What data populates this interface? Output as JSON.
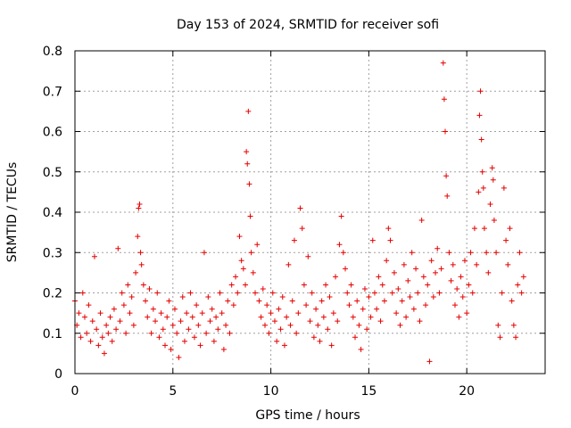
{
  "chart_data": {
    "type": "scatter",
    "title": "Day 153 of 2024, SRMTID for receiver sofi",
    "xlabel": "GPS time / hours",
    "ylabel": "SRMTID / TECUs",
    "xlim": [
      0,
      24
    ],
    "ylim": [
      0,
      0.8
    ],
    "xticks": [
      0,
      5,
      10,
      15,
      20
    ],
    "xtick_labels": [
      "0",
      "5",
      "10",
      "15",
      "20"
    ],
    "yticks": [
      0,
      0.1,
      0.2,
      0.3,
      0.4,
      0.5,
      0.6,
      0.7,
      0.8
    ],
    "ytick_labels": [
      "0",
      "0.1",
      "0.2",
      "0.3",
      "0.4",
      "0.5",
      "0.6",
      "0.7",
      "0.8"
    ],
    "grid": true,
    "marker": "plus",
    "color": "#e60000",
    "series": [
      {
        "name": "SRMTID",
        "points": [
          [
            0.0,
            0.18
          ],
          [
            0.1,
            0.12
          ],
          [
            0.2,
            0.15
          ],
          [
            0.3,
            0.09
          ],
          [
            0.4,
            0.2
          ],
          [
            0.5,
            0.14
          ],
          [
            0.6,
            0.1
          ],
          [
            0.7,
            0.17
          ],
          [
            0.8,
            0.08
          ],
          [
            0.9,
            0.13
          ],
          [
            1.0,
            0.29
          ],
          [
            1.1,
            0.11
          ],
          [
            1.2,
            0.07
          ],
          [
            1.3,
            0.15
          ],
          [
            1.4,
            0.09
          ],
          [
            1.5,
            0.05
          ],
          [
            1.6,
            0.12
          ],
          [
            1.7,
            0.1
          ],
          [
            1.8,
            0.14
          ],
          [
            1.9,
            0.08
          ],
          [
            2.0,
            0.16
          ],
          [
            2.1,
            0.11
          ],
          [
            2.2,
            0.31
          ],
          [
            2.3,
            0.13
          ],
          [
            2.4,
            0.2
          ],
          [
            2.5,
            0.17
          ],
          [
            2.6,
            0.1
          ],
          [
            2.7,
            0.22
          ],
          [
            2.8,
            0.15
          ],
          [
            2.9,
            0.19
          ],
          [
            3.0,
            0.12
          ],
          [
            3.1,
            0.25
          ],
          [
            3.2,
            0.34
          ],
          [
            3.25,
            0.41
          ],
          [
            3.3,
            0.42
          ],
          [
            3.35,
            0.3
          ],
          [
            3.4,
            0.27
          ],
          [
            3.5,
            0.22
          ],
          [
            3.6,
            0.18
          ],
          [
            3.7,
            0.14
          ],
          [
            3.8,
            0.21
          ],
          [
            3.9,
            0.1
          ],
          [
            4.0,
            0.16
          ],
          [
            4.1,
            0.13
          ],
          [
            4.2,
            0.2
          ],
          [
            4.3,
            0.09
          ],
          [
            4.4,
            0.15
          ],
          [
            4.5,
            0.11
          ],
          [
            4.6,
            0.07
          ],
          [
            4.7,
            0.14
          ],
          [
            4.8,
            0.18
          ],
          [
            4.9,
            0.06
          ],
          [
            5.0,
            0.12
          ],
          [
            5.1,
            0.16
          ],
          [
            5.2,
            0.1
          ],
          [
            5.3,
            0.04
          ],
          [
            5.4,
            0.13
          ],
          [
            5.5,
            0.19
          ],
          [
            5.6,
            0.08
          ],
          [
            5.7,
            0.15
          ],
          [
            5.8,
            0.11
          ],
          [
            5.9,
            0.2
          ],
          [
            6.0,
            0.14
          ],
          [
            6.1,
            0.09
          ],
          [
            6.2,
            0.17
          ],
          [
            6.3,
            0.12
          ],
          [
            6.4,
            0.07
          ],
          [
            6.5,
            0.15
          ],
          [
            6.6,
            0.3
          ],
          [
            6.7,
            0.1
          ],
          [
            6.8,
            0.19
          ],
          [
            6.9,
            0.13
          ],
          [
            7.0,
            0.16
          ],
          [
            7.1,
            0.08
          ],
          [
            7.2,
            0.14
          ],
          [
            7.3,
            0.11
          ],
          [
            7.4,
            0.2
          ],
          [
            7.5,
            0.15
          ],
          [
            7.6,
            0.06
          ],
          [
            7.7,
            0.12
          ],
          [
            7.8,
            0.18
          ],
          [
            7.9,
            0.1
          ],
          [
            8.0,
            0.22
          ],
          [
            8.1,
            0.17
          ],
          [
            8.2,
            0.24
          ],
          [
            8.3,
            0.2
          ],
          [
            8.4,
            0.34
          ],
          [
            8.5,
            0.28
          ],
          [
            8.6,
            0.26
          ],
          [
            8.7,
            0.22
          ],
          [
            8.75,
            0.55
          ],
          [
            8.8,
            0.52
          ],
          [
            8.85,
            0.65
          ],
          [
            8.9,
            0.47
          ],
          [
            8.95,
            0.39
          ],
          [
            9.0,
            0.3
          ],
          [
            9.1,
            0.25
          ],
          [
            9.2,
            0.2
          ],
          [
            9.3,
            0.32
          ],
          [
            9.4,
            0.18
          ],
          [
            9.5,
            0.14
          ],
          [
            9.6,
            0.21
          ],
          [
            9.7,
            0.12
          ],
          [
            9.8,
            0.17
          ],
          [
            9.9,
            0.1
          ],
          [
            10.0,
            0.15
          ],
          [
            10.1,
            0.2
          ],
          [
            10.2,
            0.13
          ],
          [
            10.3,
            0.08
          ],
          [
            10.4,
            0.16
          ],
          [
            10.5,
            0.11
          ],
          [
            10.6,
            0.19
          ],
          [
            10.7,
            0.07
          ],
          [
            10.8,
            0.14
          ],
          [
            10.9,
            0.27
          ],
          [
            11.0,
            0.12
          ],
          [
            11.1,
            0.18
          ],
          [
            11.2,
            0.33
          ],
          [
            11.3,
            0.1
          ],
          [
            11.4,
            0.15
          ],
          [
            11.5,
            0.41
          ],
          [
            11.6,
            0.36
          ],
          [
            11.7,
            0.22
          ],
          [
            11.8,
            0.17
          ],
          [
            11.9,
            0.29
          ],
          [
            12.0,
            0.13
          ],
          [
            12.1,
            0.2
          ],
          [
            12.2,
            0.09
          ],
          [
            12.3,
            0.16
          ],
          [
            12.4,
            0.12
          ],
          [
            12.5,
            0.08
          ],
          [
            12.6,
            0.18
          ],
          [
            12.7,
            0.14
          ],
          [
            12.8,
            0.22
          ],
          [
            12.9,
            0.11
          ],
          [
            13.0,
            0.19
          ],
          [
            13.1,
            0.07
          ],
          [
            13.2,
            0.15
          ],
          [
            13.3,
            0.24
          ],
          [
            13.4,
            0.13
          ],
          [
            13.5,
            0.32
          ],
          [
            13.6,
            0.39
          ],
          [
            13.7,
            0.3
          ],
          [
            13.8,
            0.26
          ],
          [
            13.9,
            0.2
          ],
          [
            14.0,
            0.17
          ],
          [
            14.1,
            0.22
          ],
          [
            14.2,
            0.14
          ],
          [
            14.3,
            0.09
          ],
          [
            14.4,
            0.18
          ],
          [
            14.5,
            0.12
          ],
          [
            14.6,
            0.06
          ],
          [
            14.7,
            0.16
          ],
          [
            14.8,
            0.21
          ],
          [
            14.9,
            0.11
          ],
          [
            15.0,
            0.19
          ],
          [
            15.1,
            0.14
          ],
          [
            15.2,
            0.33
          ],
          [
            15.3,
            0.2
          ],
          [
            15.4,
            0.16
          ],
          [
            15.5,
            0.24
          ],
          [
            15.6,
            0.13
          ],
          [
            15.7,
            0.22
          ],
          [
            15.8,
            0.18
          ],
          [
            15.9,
            0.28
          ],
          [
            16.0,
            0.36
          ],
          [
            16.1,
            0.33
          ],
          [
            16.2,
            0.2
          ],
          [
            16.3,
            0.25
          ],
          [
            16.4,
            0.15
          ],
          [
            16.5,
            0.21
          ],
          [
            16.6,
            0.12
          ],
          [
            16.7,
            0.18
          ],
          [
            16.8,
            0.27
          ],
          [
            16.9,
            0.14
          ],
          [
            17.0,
            0.23
          ],
          [
            17.1,
            0.19
          ],
          [
            17.2,
            0.3
          ],
          [
            17.3,
            0.16
          ],
          [
            17.4,
            0.26
          ],
          [
            17.5,
            0.2
          ],
          [
            17.6,
            0.13
          ],
          [
            17.7,
            0.38
          ],
          [
            17.8,
            0.24
          ],
          [
            17.9,
            0.17
          ],
          [
            18.0,
            0.22
          ],
          [
            18.1,
            0.03
          ],
          [
            18.2,
            0.28
          ],
          [
            18.3,
            0.19
          ],
          [
            18.4,
            0.25
          ],
          [
            18.5,
            0.31
          ],
          [
            18.6,
            0.2
          ],
          [
            18.7,
            0.26
          ],
          [
            18.8,
            0.77
          ],
          [
            18.85,
            0.68
          ],
          [
            18.9,
            0.6
          ],
          [
            18.95,
            0.49
          ],
          [
            19.0,
            0.44
          ],
          [
            19.1,
            0.3
          ],
          [
            19.2,
            0.23
          ],
          [
            19.3,
            0.27
          ],
          [
            19.4,
            0.17
          ],
          [
            19.5,
            0.21
          ],
          [
            19.6,
            0.14
          ],
          [
            19.7,
            0.24
          ],
          [
            19.8,
            0.19
          ],
          [
            19.9,
            0.28
          ],
          [
            20.0,
            0.15
          ],
          [
            20.1,
            0.22
          ],
          [
            20.2,
            0.3
          ],
          [
            20.3,
            0.2
          ],
          [
            20.4,
            0.36
          ],
          [
            20.5,
            0.27
          ],
          [
            20.6,
            0.45
          ],
          [
            20.65,
            0.64
          ],
          [
            20.7,
            0.7
          ],
          [
            20.75,
            0.58
          ],
          [
            20.8,
            0.5
          ],
          [
            20.85,
            0.46
          ],
          [
            20.9,
            0.36
          ],
          [
            21.0,
            0.3
          ],
          [
            21.1,
            0.25
          ],
          [
            21.2,
            0.42
          ],
          [
            21.3,
            0.51
          ],
          [
            21.35,
            0.48
          ],
          [
            21.4,
            0.38
          ],
          [
            21.5,
            0.3
          ],
          [
            21.6,
            0.12
          ],
          [
            21.7,
            0.09
          ],
          [
            21.8,
            0.2
          ],
          [
            21.9,
            0.46
          ],
          [
            22.0,
            0.33
          ],
          [
            22.1,
            0.27
          ],
          [
            22.2,
            0.36
          ],
          [
            22.3,
            0.18
          ],
          [
            22.4,
            0.12
          ],
          [
            22.5,
            0.09
          ],
          [
            22.6,
            0.22
          ],
          [
            22.7,
            0.3
          ],
          [
            22.8,
            0.2
          ],
          [
            22.9,
            0.24
          ]
        ]
      }
    ]
  }
}
